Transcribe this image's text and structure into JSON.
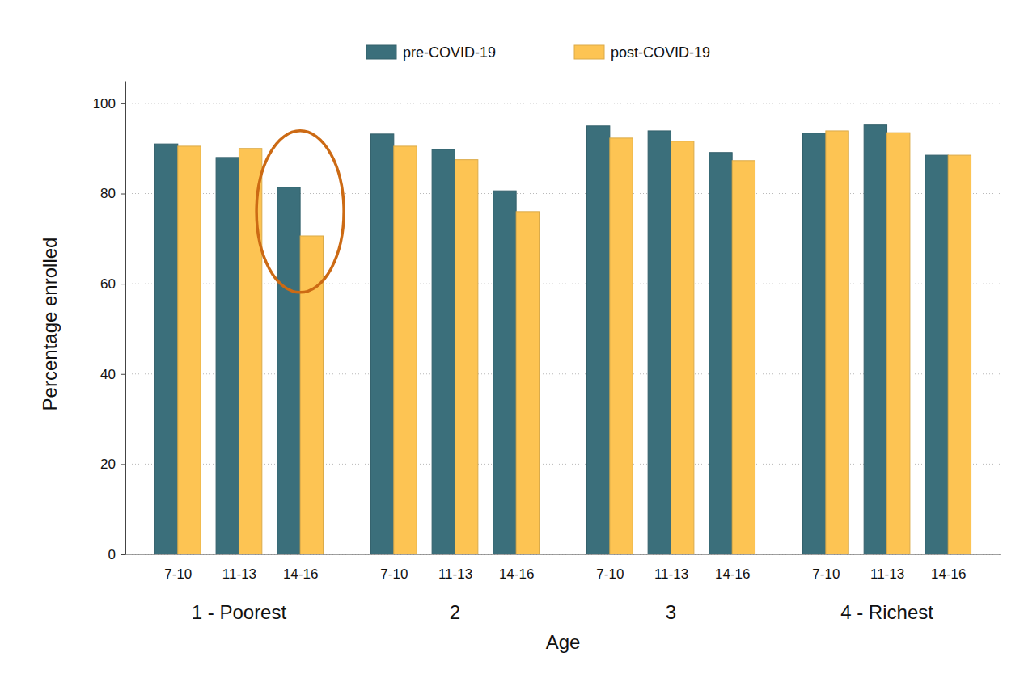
{
  "chart_data": {
    "type": "bar",
    "x_label": "Age",
    "y_label": "Percentage enrolled",
    "categories": [
      "7-10",
      "11-13",
      "14-16",
      "7-10",
      "11-13",
      "14-16",
      "7-10",
      "11-13",
      "14-16",
      "7-10",
      "11-13",
      "14-16"
    ],
    "groups": [
      "1 - Poorest",
      "2",
      "3",
      "4 - Richest"
    ],
    "series": [
      {
        "name": "pre-COVID-19",
        "color": "#3b6f7b",
        "values": [
          91.0,
          88.0,
          81.4,
          93.2,
          89.8,
          80.6,
          95.0,
          93.9,
          89.1,
          93.4,
          95.2,
          88.5
        ]
      },
      {
        "name": "post-COVID-19",
        "color": "#fdc453",
        "values": [
          90.5,
          90.0,
          70.6,
          90.5,
          87.5,
          76.0,
          92.3,
          91.6,
          87.3,
          93.9,
          93.5,
          88.5
        ]
      }
    ],
    "ylim": [
      0,
      105
    ],
    "yticks": [
      0,
      20,
      40,
      60,
      80,
      100
    ],
    "grid": true,
    "legend": "top"
  }
}
